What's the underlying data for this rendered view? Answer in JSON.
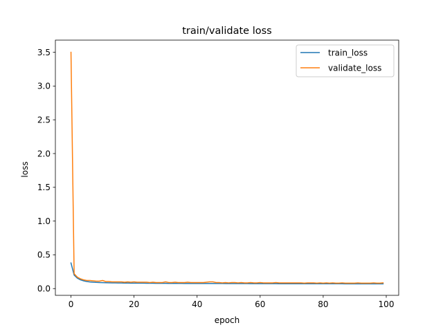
{
  "chart_data": {
    "type": "line",
    "title": "train/validate loss",
    "xlabel": "epoch",
    "ylabel": "loss",
    "xlim": [
      -4.95,
      103.95
    ],
    "ylim": [
      -0.1,
      3.68
    ],
    "xticks": [
      0,
      20,
      40,
      60,
      80,
      100
    ],
    "yticks": [
      0.0,
      0.5,
      1.0,
      1.5,
      2.0,
      2.5,
      3.0,
      3.5
    ],
    "xtick_labels": [
      "0",
      "20",
      "40",
      "60",
      "80",
      "100"
    ],
    "ytick_labels": [
      "0.0",
      "0.5",
      "1.0",
      "1.5",
      "2.0",
      "2.5",
      "3.0",
      "3.5"
    ],
    "legend_position": "top-right",
    "grid": false,
    "series": [
      {
        "name": "train_loss",
        "color": "#1f77b4",
        "x": [
          0,
          1,
          2,
          3,
          4,
          5,
          6,
          7,
          8,
          9,
          10,
          11,
          12,
          13,
          14,
          15,
          16,
          17,
          18,
          19,
          20,
          21,
          22,
          23,
          24,
          25,
          26,
          27,
          28,
          29,
          30,
          31,
          32,
          33,
          34,
          35,
          36,
          37,
          38,
          39,
          40,
          41,
          42,
          43,
          44,
          45,
          46,
          47,
          48,
          49,
          50,
          51,
          52,
          53,
          54,
          55,
          56,
          57,
          58,
          59,
          60,
          61,
          62,
          63,
          64,
          65,
          66,
          67,
          68,
          69,
          70,
          71,
          72,
          73,
          74,
          75,
          76,
          77,
          78,
          79,
          80,
          81,
          82,
          83,
          84,
          85,
          86,
          87,
          88,
          89,
          90,
          91,
          92,
          93,
          94,
          95,
          96,
          97,
          98,
          99
        ],
        "y": [
          0.38,
          0.2,
          0.155,
          0.13,
          0.115,
          0.105,
          0.099,
          0.095,
          0.092,
          0.09,
          0.088,
          0.087,
          0.086,
          0.085,
          0.084,
          0.083,
          0.083,
          0.082,
          0.082,
          0.081,
          0.081,
          0.08,
          0.08,
          0.08,
          0.079,
          0.079,
          0.079,
          0.078,
          0.078,
          0.078,
          0.078,
          0.077,
          0.077,
          0.077,
          0.077,
          0.077,
          0.076,
          0.076,
          0.076,
          0.076,
          0.076,
          0.076,
          0.075,
          0.075,
          0.075,
          0.075,
          0.075,
          0.075,
          0.075,
          0.074,
          0.074,
          0.074,
          0.074,
          0.074,
          0.074,
          0.074,
          0.074,
          0.073,
          0.073,
          0.073,
          0.073,
          0.073,
          0.073,
          0.073,
          0.073,
          0.073,
          0.072,
          0.072,
          0.072,
          0.072,
          0.072,
          0.072,
          0.072,
          0.072,
          0.072,
          0.072,
          0.071,
          0.071,
          0.071,
          0.071,
          0.071,
          0.071,
          0.071,
          0.071,
          0.071,
          0.071,
          0.071,
          0.07,
          0.07,
          0.07,
          0.07,
          0.07,
          0.07,
          0.07,
          0.07,
          0.07,
          0.07,
          0.07,
          0.07,
          0.07
        ]
      },
      {
        "name": "validate_loss",
        "color": "#ff7f0e",
        "x": [
          0,
          1,
          2,
          3,
          4,
          5,
          6,
          7,
          8,
          9,
          10,
          11,
          12,
          13,
          14,
          15,
          16,
          17,
          18,
          19,
          20,
          21,
          22,
          23,
          24,
          25,
          26,
          27,
          28,
          29,
          30,
          31,
          32,
          33,
          34,
          35,
          36,
          37,
          38,
          39,
          40,
          41,
          42,
          43,
          44,
          45,
          46,
          47,
          48,
          49,
          50,
          51,
          52,
          53,
          54,
          55,
          56,
          57,
          58,
          59,
          60,
          61,
          62,
          63,
          64,
          65,
          66,
          67,
          68,
          69,
          70,
          71,
          72,
          73,
          74,
          75,
          76,
          77,
          78,
          79,
          80,
          81,
          82,
          83,
          84,
          85,
          86,
          87,
          88,
          89,
          90,
          91,
          92,
          93,
          94,
          95,
          96,
          97,
          98,
          99
        ],
        "y": [
          3.5,
          0.22,
          0.17,
          0.145,
          0.13,
          0.12,
          0.12,
          0.115,
          0.11,
          0.11,
          0.12,
          0.105,
          0.105,
          0.1,
          0.1,
          0.1,
          0.1,
          0.095,
          0.1,
          0.095,
          0.1,
          0.095,
          0.095,
          0.095,
          0.095,
          0.09,
          0.095,
          0.09,
          0.09,
          0.09,
          0.1,
          0.09,
          0.09,
          0.095,
          0.09,
          0.09,
          0.09,
          0.095,
          0.09,
          0.09,
          0.09,
          0.09,
          0.09,
          0.095,
          0.1,
          0.1,
          0.09,
          0.09,
          0.085,
          0.09,
          0.085,
          0.09,
          0.09,
          0.085,
          0.09,
          0.085,
          0.085,
          0.09,
          0.085,
          0.085,
          0.09,
          0.085,
          0.085,
          0.085,
          0.085,
          0.09,
          0.085,
          0.085,
          0.085,
          0.085,
          0.085,
          0.085,
          0.085,
          0.085,
          0.08,
          0.085,
          0.085,
          0.085,
          0.08,
          0.085,
          0.08,
          0.085,
          0.08,
          0.085,
          0.08,
          0.08,
          0.085,
          0.08,
          0.08,
          0.08,
          0.08,
          0.085,
          0.08,
          0.08,
          0.08,
          0.08,
          0.085,
          0.08,
          0.08,
          0.085
        ]
      }
    ]
  }
}
